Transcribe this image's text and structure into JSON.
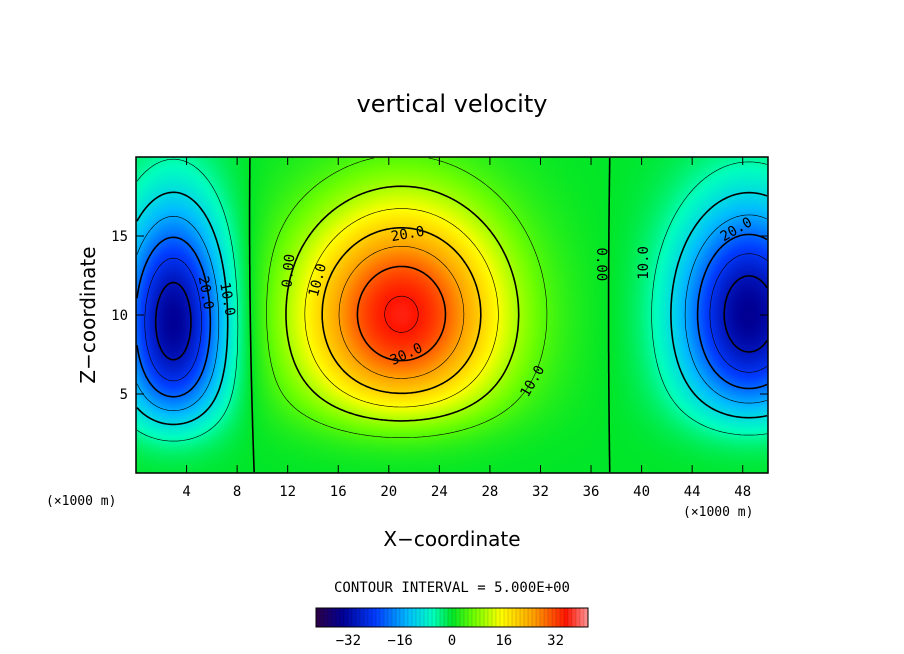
{
  "chart_data": {
    "type": "heatmap",
    "title": "vertical velocity",
    "xlabel": "X−coordinate",
    "ylabel": "Z−coordinate",
    "x_unit": "(×1000 m)",
    "z_unit": "(×1000 m)",
    "xlim": [
      0,
      50
    ],
    "ylim": [
      0,
      20
    ],
    "x_ticks": [
      4,
      8,
      12,
      16,
      20,
      24,
      28,
      32,
      36,
      40,
      44,
      48
    ],
    "y_ticks": [
      5,
      10,
      15
    ],
    "field": {
      "peak_positive": {
        "value": 36,
        "x": 21,
        "z": 10
      },
      "peak_negative_left": {
        "value": -34,
        "x": 3,
        "z": 9.5
      },
      "peak_negative_right": {
        "value": -34,
        "x": 48.5,
        "z": 10
      }
    },
    "contour_interval": 5.0,
    "contour_interval_label": "CONTOUR INTERVAL = 5.000E+00",
    "contour_labels": [
      {
        "text": "20.0",
        "x": 21.5,
        "z": 15.1,
        "angle": -10
      },
      {
        "text": "30.0",
        "x": 21.4,
        "z": 7.5,
        "angle": -25
      },
      {
        "text": "10.0",
        "x": 14.4,
        "z": 12.2,
        "angle": -75
      },
      {
        "text": "10.0",
        "x": 31.4,
        "z": 5.8,
        "angle": -60
      },
      {
        "text": "0.00",
        "x": 12.1,
        "z": 12.8,
        "angle": -85
      },
      {
        "text": "0.00",
        "x": 36.8,
        "z": 13.2,
        "angle": 90
      },
      {
        "text": "20.0",
        "x": 5.5,
        "z": 11.4,
        "angle": 80
      },
      {
        "text": "10.0",
        "x": 7.2,
        "z": 11.0,
        "angle": 80
      },
      {
        "text": "10.0",
        "x": 40.2,
        "z": 13.3,
        "angle": -90
      },
      {
        "text": "20.0",
        "x": 47.5,
        "z": 15.4,
        "angle": -30
      }
    ],
    "colorbar": {
      "range": [
        -42,
        42
      ],
      "ticks": [
        "−32",
        "−16",
        "0",
        "16",
        "32"
      ],
      "tick_values": [
        -32,
        -16,
        0,
        16,
        32
      ]
    }
  }
}
